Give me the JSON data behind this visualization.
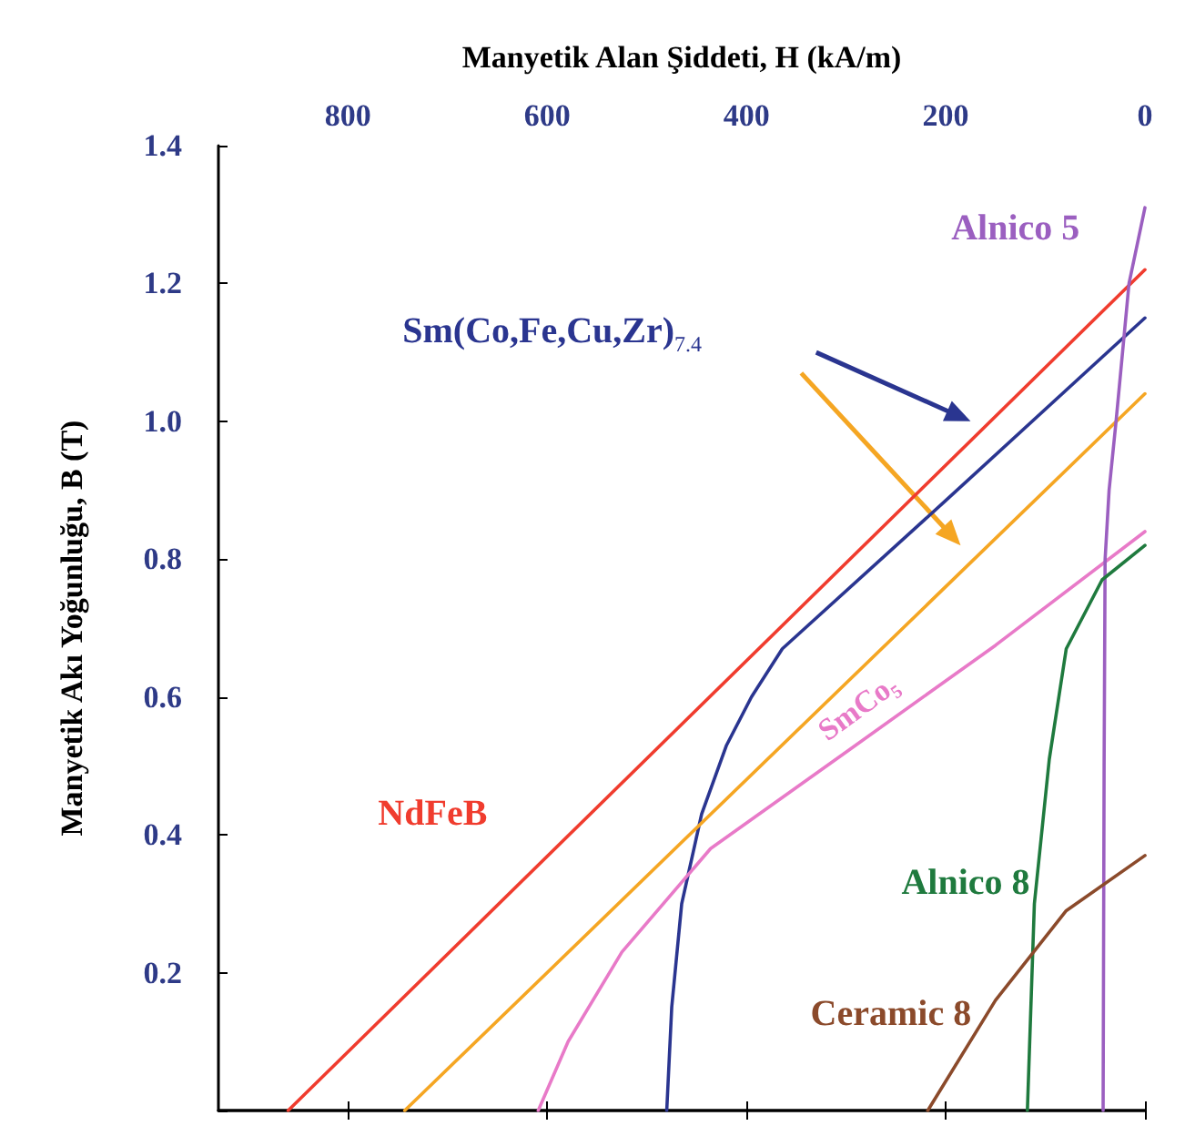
{
  "chart_data": {
    "type": "line",
    "xlabel": "Manyetik Alan Şiddeti, H (kA/m)",
    "ylabel": "Manyetik Akı Yoğunluğu, B (T)",
    "xlim": [
      930,
      0
    ],
    "xticks": [
      800,
      600,
      400,
      200,
      0
    ],
    "ylim": [
      0,
      1.4
    ],
    "yticks": [
      {
        "value": 0,
        "label": null
      },
      0.2,
      0.4,
      0.6,
      0.8,
      {
        "value": 1,
        "label": "1.0"
      },
      1.2,
      1.4
    ],
    "marker": "none",
    "line_style": "solid",
    "legend": false,
    "grid": false,
    "series": [
      {
        "name": "NdFeB",
        "color": "#f03c2e",
        "x": [
          860,
          0
        ],
        "values": [
          0,
          1.22
        ]
      },
      {
        "name": "Sm(Co,Fe,Cu,Zr)$_{7.4}$",
        "color": "#2a3590",
        "x": [
          480,
          475,
          465,
          445,
          420,
          395,
          364,
          200,
          0
        ],
        "values": [
          0,
          0.15,
          0.3,
          0.43,
          0.53,
          0.6,
          0.67,
          0.885,
          1.15
        ]
      },
      {
        "color": "#f5a623",
        "x": [
          743,
          0
        ],
        "values": [
          0,
          1.04
        ]
      },
      {
        "name": "SmCo₅",
        "color": "#e87ac8",
        "x": [
          609,
          579,
          525,
          436,
          300,
          150,
          0
        ],
        "values": [
          0,
          0.1,
          0.23,
          0.38,
          0.52,
          0.675,
          0.84
        ]
      },
      {
        "name": "Alnico 5",
        "color": "#9b5fc0",
        "x": [
          42,
          41,
          40,
          36,
          29,
          16,
          0
        ],
        "values": [
          0,
          0.5,
          0.8,
          0.9,
          1.0,
          1.2,
          1.31
        ]
      },
      {
        "name": "Alnico 8",
        "color": "#1f7a3e",
        "x": [
          118,
          111,
          96,
          79,
          43,
          0
        ],
        "values": [
          0,
          0.3,
          0.51,
          0.67,
          0.77,
          0.82
        ]
      },
      {
        "name": "Ceramic 8",
        "color": "#8b4a2b",
        "x": [
          218,
          150,
          79,
          0
        ],
        "values": [
          0,
          0.16,
          0.29,
          0.37
        ]
      }
    ]
  }
}
